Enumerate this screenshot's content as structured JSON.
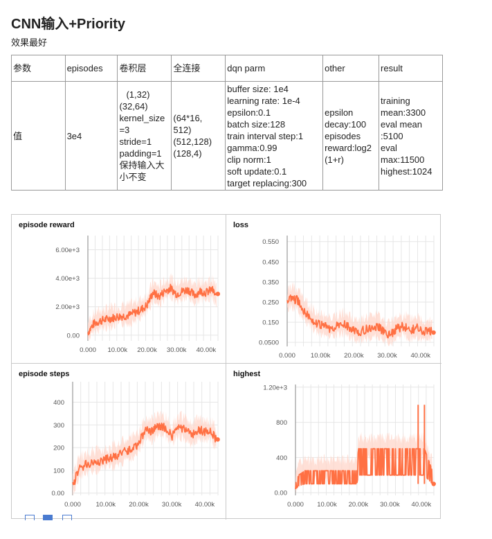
{
  "doc": {
    "title": "CNN输入+Priority",
    "subtitle": "效果最好"
  },
  "table": {
    "headers": [
      "参数",
      "episodes",
      "卷积层",
      "全连接",
      "dqn parm",
      "other",
      "result"
    ],
    "row_label": "值",
    "episodes": "3e4",
    "conv": [
      "(1,32)",
      "(32,64)",
      "kernel_size",
      "=3",
      "stride=1",
      "padding=1",
      "保持输入大",
      "小不变"
    ],
    "fc": [
      "(64*16,",
      "512)",
      "(512,128)",
      "(128,4)"
    ],
    "dqn": [
      "buffer size: 1e4",
      "learning rate: 1e-4",
      "epsilon:0.1",
      "batch size:128",
      "train interval step:1",
      "gamma:0.99",
      "clip norm:1",
      "soft update:0.1",
      "target replacing:300"
    ],
    "other": [
      "epsilon",
      "decay:100",
      "episodes",
      "reward:log2",
      "(1+r)"
    ],
    "result": [
      "training",
      "mean:3300",
      "eval mean",
      ":5100",
      "eval",
      "max:11500",
      "highest:1024"
    ]
  },
  "chart_data": [
    {
      "type": "line",
      "title": "episode reward",
      "xlim": [
        0,
        44000
      ],
      "ylim": [
        -400,
        7000
      ],
      "xticks": [
        "0.000",
        "10.00k",
        "20.00k",
        "30.00k",
        "40.00k"
      ],
      "xtick_values": [
        0,
        10000,
        20000,
        30000,
        40000
      ],
      "yticks": [
        "0.00",
        "2.00e+3",
        "4.00e+3",
        "6.00e+3"
      ],
      "ytick_values": [
        0,
        2000,
        4000,
        6000
      ],
      "series": [
        {
          "x": [
            0,
            2000,
            4000,
            6000,
            8000,
            10000,
            12000,
            14000,
            16000,
            18000,
            20000,
            22000,
            24000,
            26000,
            28000,
            30000,
            32000,
            34000,
            36000,
            38000,
            40000,
            42000,
            43500
          ],
          "values": [
            200,
            800,
            1000,
            1100,
            1200,
            1300,
            1350,
            1400,
            1600,
            1800,
            2100,
            3000,
            2700,
            3100,
            3300,
            2900,
            3100,
            3200,
            2800,
            3100,
            3000,
            3200,
            2700
          ]
        }
      ],
      "color": "#ff7043",
      "band_color": "#ffd6c9"
    },
    {
      "type": "line",
      "title": "loss",
      "xlim": [
        0,
        44000
      ],
      "ylim": [
        0.03,
        0.58
      ],
      "xticks": [
        "0.000",
        "10.00k",
        "20.00k",
        "30.00k",
        "40.00k"
      ],
      "xtick_values": [
        0,
        10000,
        20000,
        30000,
        40000
      ],
      "yticks": [
        "0.0500",
        "0.150",
        "0.250",
        "0.350",
        "0.450",
        "0.550"
      ],
      "ytick_values": [
        0.05,
        0.15,
        0.25,
        0.35,
        0.45,
        0.55
      ],
      "series": [
        {
          "x": [
            0,
            1000,
            3000,
            5000,
            7000,
            9000,
            11000,
            13000,
            15000,
            17000,
            19000,
            21000,
            23000,
            25000,
            27000,
            29000,
            31000,
            33000,
            35000,
            37000,
            39000,
            41000,
            43500
          ],
          "values": [
            0.25,
            0.27,
            0.26,
            0.21,
            0.17,
            0.14,
            0.13,
            0.12,
            0.13,
            0.14,
            0.12,
            0.1,
            0.11,
            0.12,
            0.13,
            0.1,
            0.09,
            0.12,
            0.13,
            0.11,
            0.12,
            0.1,
            0.11
          ]
        }
      ],
      "color": "#ff7043",
      "band_color": "#ffd6c9"
    },
    {
      "type": "line",
      "title": "episode steps",
      "xlim": [
        0,
        44000
      ],
      "ylim": [
        -10,
        490
      ],
      "xticks": [
        "0.000",
        "10.00k",
        "20.00k",
        "30.00k",
        "40.00k"
      ],
      "xtick_values": [
        0,
        10000,
        20000,
        30000,
        40000
      ],
      "yticks": [
        "0.00",
        "100",
        "200",
        "300",
        "400"
      ],
      "ytick_values": [
        0,
        100,
        200,
        300,
        400
      ],
      "series": [
        {
          "x": [
            0,
            2000,
            4000,
            6000,
            8000,
            10000,
            12000,
            14000,
            16000,
            18000,
            20000,
            22000,
            24000,
            26000,
            28000,
            30000,
            32000,
            34000,
            36000,
            38000,
            40000,
            42000,
            43500
          ],
          "values": [
            30,
            110,
            125,
            135,
            140,
            150,
            155,
            165,
            185,
            195,
            220,
            280,
            270,
            300,
            290,
            250,
            290,
            280,
            250,
            280,
            270,
            270,
            230
          ]
        }
      ],
      "color": "#ff7043",
      "band_color": "#ffd6c9"
    },
    {
      "type": "line",
      "title": "highest",
      "xlim": [
        0,
        44000
      ],
      "ylim": [
        -30,
        1230
      ],
      "xticks": [
        "0.000",
        "10.00k",
        "20.00k",
        "30.00k",
        "40.00k"
      ],
      "xtick_values": [
        0,
        10000,
        20000,
        30000,
        40000
      ],
      "yticks": [
        "0.00",
        "400",
        "800",
        "1.20e+3"
      ],
      "ytick_values": [
        0,
        400,
        800,
        1200
      ],
      "series": [
        {
          "x": [
            0,
            1000,
            3000,
            5000,
            8000,
            11000,
            14000,
            17000,
            19500,
            20000,
            23000,
            26000,
            29000,
            32000,
            35000,
            38000,
            41000,
            43500
          ],
          "values": [
            100,
            200,
            250,
            250,
            250,
            250,
            250,
            250,
            250,
            500,
            500,
            500,
            500,
            500,
            500,
            500,
            500,
            250
          ]
        }
      ],
      "spikes": [
        {
          "x": 39000,
          "value": 1000
        },
        {
          "x": 41000,
          "value": 1000
        }
      ],
      "color": "#ff7043",
      "band_color": "#ffd6c9"
    }
  ]
}
